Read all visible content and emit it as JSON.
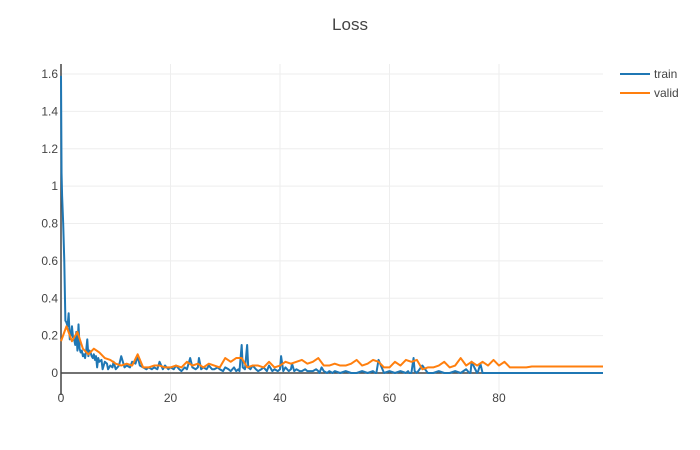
{
  "chart_data": {
    "type": "line",
    "title": "Loss",
    "xlabel": "",
    "ylabel": "",
    "xlim": [
      0,
      99
    ],
    "ylim": [
      -0.05,
      1.6
    ],
    "x_ticks": [
      0,
      20,
      40,
      60,
      80
    ],
    "x_tick_labels": [
      "0",
      "20",
      "40",
      "60",
      "80"
    ],
    "y_ticks": [
      0,
      0.2,
      0.4,
      0.6,
      0.8,
      1.0,
      1.2,
      1.4,
      1.6
    ],
    "y_tick_labels": [
      "0",
      "0.2",
      "0.4",
      "0.6",
      "0.8",
      "1",
      "1.2",
      "1.4",
      "1.6"
    ],
    "grid": true,
    "legend_position": "top-right",
    "colors": {
      "train": "#1f77b4",
      "valid": "#ff7f0e",
      "grid": "#eeeeee",
      "axis": "#444444"
    },
    "series": [
      {
        "name": "train",
        "x": [
          0,
          0.1,
          0.2,
          0.4,
          0.6,
          0.8,
          1.0,
          1.2,
          1.4,
          1.6,
          1.8,
          2.0,
          2.2,
          2.4,
          2.6,
          2.8,
          3.0,
          3.2,
          3.4,
          3.6,
          3.8,
          4.0,
          4.2,
          4.4,
          4.6,
          4.8,
          5.0,
          5.2,
          5.4,
          5.6,
          5.8,
          6.0,
          6.2,
          6.4,
          6.6,
          6.8,
          7.0,
          7.4,
          7.6,
          8.0,
          8.4,
          8.6,
          9.0,
          9.4,
          9.6,
          10.0,
          10.6,
          11.0,
          11.6,
          12.0,
          12.6,
          13.0,
          13.6,
          14.0,
          14.4,
          15.0,
          15.6,
          16.0,
          16.6,
          17.0,
          17.6,
          18.0,
          18.6,
          19.0,
          19.6,
          20.0,
          20.6,
          21.0,
          21.6,
          22.0,
          22.6,
          23.0,
          23.6,
          24.0,
          24.6,
          25.0,
          25.2,
          25.6,
          26.0,
          26.6,
          27.0,
          27.6,
          28.0,
          28.6,
          29.0,
          29.6,
          30.0,
          30.6,
          31.0,
          31.6,
          32.0,
          32.4,
          32.6,
          33.0,
          33.2,
          33.6,
          34.0,
          34.2,
          34.6,
          35.0,
          35.6,
          36.0,
          36.6,
          37.0,
          37.6,
          38.0,
          38.6,
          39.0,
          39.6,
          40.0,
          40.2,
          40.6,
          41.0,
          41.6,
          42.0,
          42.2,
          42.6,
          43.0,
          43.6,
          44.0,
          44.6,
          45.0,
          45.6,
          46.0,
          46.6,
          47.0,
          47.2,
          47.6,
          48.0,
          48.6,
          49.0,
          49.6,
          50.0,
          51.0,
          52.0,
          53.0,
          54.0,
          55.0,
          56.0,
          57.0,
          57.4,
          57.6,
          58.0,
          59.0,
          60.0,
          61.0,
          62.0,
          63.0,
          63.4,
          63.6,
          64.0,
          64.4,
          64.6,
          65.0,
          66.0,
          67.0,
          68.0,
          69.0,
          70.0,
          71.0,
          72.0,
          73.0,
          74.0,
          74.6,
          74.8,
          75.0,
          76.0,
          76.2,
          76.6,
          77.0,
          78.0,
          79.0,
          80.0,
          82.0,
          85.0,
          88.0,
          91.0,
          94.0,
          97.0,
          99.0
        ],
        "y": [
          1.59,
          1.07,
          0.95,
          0.8,
          0.6,
          0.28,
          0.27,
          0.25,
          0.32,
          0.18,
          0.2,
          0.25,
          0.19,
          0.18,
          0.15,
          0.22,
          0.12,
          0.26,
          0.13,
          0.11,
          0.12,
          0.09,
          0.1,
          0.08,
          0.12,
          0.18,
          0.09,
          0.12,
          0.11,
          0.09,
          0.08,
          0.1,
          0.07,
          0.09,
          0.03,
          0.08,
          0.06,
          0.07,
          0.02,
          0.06,
          0.05,
          0.02,
          0.04,
          0.03,
          0.06,
          0.02,
          0.04,
          0.09,
          0.03,
          0.04,
          0.03,
          0.06,
          0.05,
          0.09,
          0.04,
          0.03,
          0.02,
          0.03,
          0.02,
          0.03,
          0.02,
          0.06,
          0.02,
          0.04,
          0.02,
          0.03,
          0.02,
          0.04,
          0.02,
          0.01,
          0.03,
          0.02,
          0.08,
          0.03,
          0.02,
          0.03,
          0.08,
          0.02,
          0.03,
          0.02,
          0.04,
          0.02,
          0.02,
          0.03,
          0.02,
          0.01,
          0.03,
          0.02,
          0.01,
          0.03,
          0.01,
          0.02,
          0.01,
          0.15,
          0.03,
          0.02,
          0.15,
          0.03,
          0.02,
          0.04,
          0.02,
          0.01,
          0.02,
          0.03,
          0.01,
          0.04,
          0.01,
          0.02,
          0.01,
          0.02,
          0.09,
          0.01,
          0.03,
          0.01,
          0.02,
          0.05,
          0.01,
          0.02,
          0.01,
          0.01,
          0.02,
          0.01,
          0.01,
          0.01,
          0.02,
          0.01,
          0.0,
          0.03,
          0.01,
          0.0,
          0.01,
          0.0,
          0.01,
          0.0,
          0.01,
          0.0,
          0.0,
          0.01,
          0.0,
          0.01,
          0.0,
          0.0,
          0.07,
          0.0,
          0.01,
          0.0,
          0.01,
          0.0,
          0.01,
          0.0,
          0.0,
          0.08,
          0.01,
          0.0,
          0.04,
          0.0,
          0.0,
          0.01,
          0.0,
          0.0,
          0.01,
          0.0,
          0.02,
          0.0,
          0.0,
          0.06,
          0.0,
          0.01,
          0.05,
          0.0,
          0.0,
          0.0,
          0.0,
          0.0,
          0.0,
          0.0,
          0.0,
          0.0,
          0.0,
          0.0
        ]
      },
      {
        "name": "valid",
        "x": [
          0,
          1,
          2,
          3,
          4,
          5,
          6,
          7,
          8,
          9,
          10,
          11,
          12,
          13,
          14,
          15,
          16,
          17,
          18,
          19,
          20,
          21,
          22,
          23,
          24,
          25,
          26,
          27,
          28,
          29,
          30,
          31,
          32,
          33,
          34,
          35,
          36,
          37,
          38,
          39,
          40,
          41,
          42,
          43,
          44,
          45,
          46,
          47,
          48,
          49,
          50,
          51,
          52,
          53,
          54,
          55,
          56,
          57,
          58,
          59,
          60,
          61,
          62,
          63,
          64,
          65,
          66,
          67,
          68,
          69,
          70,
          71,
          72,
          73,
          74,
          75,
          76,
          77,
          78,
          79,
          80,
          81,
          82,
          83,
          84,
          85,
          86,
          87,
          88,
          89,
          90,
          91,
          92,
          93,
          94,
          95,
          96,
          97,
          98,
          99
        ],
        "y": [
          0.17,
          0.25,
          0.17,
          0.22,
          0.13,
          0.1,
          0.13,
          0.11,
          0.08,
          0.07,
          0.05,
          0.04,
          0.05,
          0.04,
          0.1,
          0.03,
          0.03,
          0.04,
          0.04,
          0.03,
          0.03,
          0.04,
          0.03,
          0.06,
          0.04,
          0.05,
          0.03,
          0.05,
          0.04,
          0.03,
          0.08,
          0.06,
          0.08,
          0.08,
          0.03,
          0.04,
          0.04,
          0.03,
          0.06,
          0.03,
          0.04,
          0.06,
          0.05,
          0.06,
          0.07,
          0.05,
          0.06,
          0.08,
          0.04,
          0.04,
          0.05,
          0.04,
          0.04,
          0.05,
          0.07,
          0.04,
          0.05,
          0.07,
          0.06,
          0.03,
          0.03,
          0.06,
          0.04,
          0.07,
          0.06,
          0.07,
          0.02,
          0.03,
          0.03,
          0.04,
          0.06,
          0.03,
          0.04,
          0.08,
          0.04,
          0.06,
          0.04,
          0.06,
          0.04,
          0.07,
          0.04,
          0.06,
          0.03,
          0.03,
          0.03,
          0.03,
          0.035,
          0.035,
          0.035,
          0.035,
          0.035,
          0.035,
          0.035,
          0.035,
          0.035,
          0.035,
          0.035,
          0.035,
          0.035,
          0.035
        ]
      }
    ]
  }
}
